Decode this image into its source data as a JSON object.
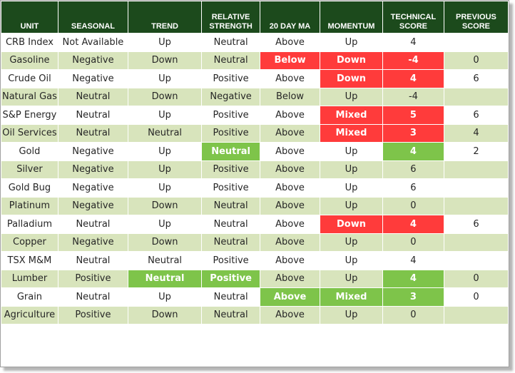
{
  "colors": {
    "header_bg": "#1c4a1c",
    "row_alt_bg": "#d8e4bc",
    "red_highlight": "#ff3b3b",
    "green_highlight": "#7ec44a"
  },
  "headers": [
    "UNIT",
    "SEASONAL",
    "TREND",
    "RELATIVE STRENGTH",
    "20 DAY MA",
    "MOMENTUM",
    "TECHNICAL SCORE",
    "PREVIOUS SCORE"
  ],
  "rows": [
    {
      "cells": [
        "CRB Index",
        "Not Available",
        "Up",
        "Neutral",
        "Above",
        "Up",
        "4",
        ""
      ],
      "highlights": [
        "",
        "",
        "",
        "",
        "",
        "",
        "",
        ""
      ]
    },
    {
      "cells": [
        "Gasoline",
        "Negative",
        "Down",
        "Neutral",
        "Below",
        "Down",
        "-4",
        "0"
      ],
      "highlights": [
        "",
        "",
        "",
        "",
        "red",
        "red",
        "red",
        ""
      ]
    },
    {
      "cells": [
        "Crude Oil",
        "Negative",
        "Up",
        "Positive",
        "Above",
        "Down",
        "4",
        "6"
      ],
      "highlights": [
        "",
        "",
        "",
        "",
        "",
        "red",
        "red",
        ""
      ]
    },
    {
      "cells": [
        "Natural Gas",
        "Neutral",
        "Down",
        "Negative",
        "Below",
        "Up",
        "-4",
        ""
      ],
      "highlights": [
        "",
        "",
        "",
        "",
        "",
        "",
        "",
        ""
      ]
    },
    {
      "cells": [
        "S&P Energy",
        "Neutral",
        "Up",
        "Positive",
        "Above",
        "Mixed",
        "5",
        "6"
      ],
      "highlights": [
        "",
        "",
        "",
        "",
        "",
        "red",
        "red",
        ""
      ]
    },
    {
      "cells": [
        "Oil Services",
        "Neutral",
        "Neutral",
        "Positive",
        "Above",
        "Mixed",
        "3",
        "4"
      ],
      "highlights": [
        "",
        "",
        "",
        "",
        "",
        "red",
        "red",
        ""
      ]
    },
    {
      "cells": [
        "Gold",
        "Negative",
        "Up",
        "Neutral",
        "Above",
        "Up",
        "4",
        "2"
      ],
      "highlights": [
        "",
        "",
        "",
        "green",
        "",
        "",
        "green",
        ""
      ]
    },
    {
      "cells": [
        "Silver",
        "Negative",
        "Up",
        "Positive",
        "Above",
        "Up",
        "6",
        ""
      ],
      "highlights": [
        "",
        "",
        "",
        "",
        "",
        "",
        "",
        ""
      ]
    },
    {
      "cells": [
        "Gold Bug",
        "Negative",
        "Up",
        "Positive",
        "Above",
        "Up",
        "6",
        ""
      ],
      "highlights": [
        "",
        "",
        "",
        "",
        "",
        "",
        "",
        ""
      ]
    },
    {
      "cells": [
        "Platinum",
        "Negative",
        "Down",
        "Neutral",
        "Above",
        "Up",
        "0",
        ""
      ],
      "highlights": [
        "",
        "",
        "",
        "",
        "",
        "",
        "",
        ""
      ]
    },
    {
      "cells": [
        "Palladium",
        "Neutral",
        "Up",
        "Neutral",
        "Above",
        "Down",
        "4",
        "6"
      ],
      "highlights": [
        "",
        "",
        "",
        "",
        "",
        "red",
        "red",
        ""
      ]
    },
    {
      "cells": [
        "Copper",
        "Negative",
        "Down",
        "Neutral",
        "Above",
        "Up",
        "0",
        ""
      ],
      "highlights": [
        "",
        "",
        "",
        "",
        "",
        "",
        "",
        ""
      ]
    },
    {
      "cells": [
        "TSX M&M",
        "Neutral",
        "Neutral",
        "Positive",
        "Above",
        "Up",
        "4",
        ""
      ],
      "highlights": [
        "",
        "",
        "",
        "",
        "",
        "",
        "",
        ""
      ]
    },
    {
      "cells": [
        "Lumber",
        "Positive",
        "Neutral",
        "Positive",
        "Above",
        "Up",
        "4",
        "0"
      ],
      "highlights": [
        "",
        "",
        "green",
        "green",
        "",
        "",
        "green",
        ""
      ]
    },
    {
      "cells": [
        "Grain",
        "Neutral",
        "Up",
        "Neutral",
        "Above",
        "Mixed",
        "3",
        "0"
      ],
      "highlights": [
        "",
        "",
        "",
        "",
        "green",
        "green",
        "green",
        ""
      ]
    },
    {
      "cells": [
        "Agriculture",
        "Positive",
        "Down",
        "Neutral",
        "Above",
        "Up",
        "0",
        ""
      ],
      "highlights": [
        "",
        "",
        "",
        "",
        "",
        "",
        "",
        ""
      ]
    }
  ]
}
